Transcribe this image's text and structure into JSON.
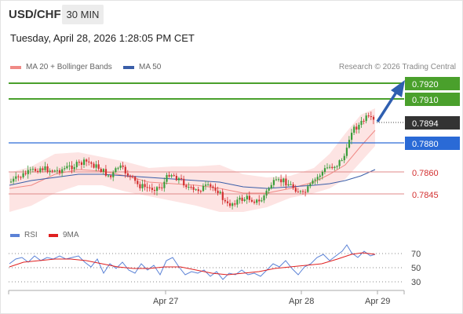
{
  "header": {
    "symbol": "USD/CHF",
    "interval": "30 MIN",
    "datetime": "Tuesday, April 28, 2026 1:28:05 PM CET"
  },
  "legend": {
    "items": [
      {
        "label": "MA 20 + Bollinger Bands",
        "color": "#f08a86"
      },
      {
        "label": "MA 50",
        "color": "#3a5ea8"
      }
    ],
    "credit": "Research © 2026 Trading Central"
  },
  "price_levels": [
    {
      "value": "0.7920",
      "style": "green-box"
    },
    {
      "value": "0.7910",
      "style": "green-box"
    },
    {
      "value": "0.7894",
      "style": "dark-box"
    },
    {
      "value": "0.7880",
      "style": "blue-box"
    },
    {
      "value": "0.7860",
      "style": "red-text"
    },
    {
      "value": "0.7845",
      "style": "red-text"
    }
  ],
  "rsi_panel": {
    "legend": [
      {
        "label": "RSI",
        "color": "#5b82d6"
      },
      {
        "label": "9MA",
        "color": "#e02020"
      }
    ],
    "levels": [
      "70",
      "50",
      "30"
    ]
  },
  "x_axis": [
    "Apr 27",
    "Apr 28",
    "Apr 29"
  ],
  "colors": {
    "up": "#3a9d3a",
    "down": "#d33030",
    "resistance": "#4aa02c",
    "pivot": "#2a6ad6",
    "support": "#e08a8a",
    "band_fill": "#fde4e3"
  }
}
